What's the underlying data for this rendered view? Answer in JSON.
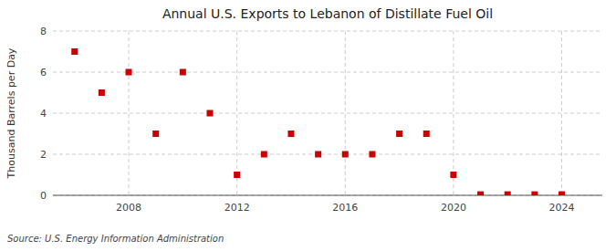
{
  "chart_data": {
    "type": "scatter",
    "title": "Annual U.S. Exports to Lebanon of Distillate Fuel Oil",
    "ylabel": "Thousand Barrels per Day",
    "annotations": [
      "Source: U.S. Energy Information Administration"
    ],
    "x": [
      2006,
      2007,
      2008,
      2009,
      2010,
      2011,
      2012,
      2013,
      2014,
      2015,
      2016,
      2017,
      2018,
      2019,
      2020,
      2021,
      2022,
      2023,
      2024
    ],
    "values": [
      7.0,
      5.0,
      6.0,
      3.0,
      6.0,
      4.0,
      1.0,
      2.0,
      3.0,
      2.0,
      2.0,
      2.0,
      3.0,
      3.0,
      1.0,
      0.04,
      0.04,
      0.04,
      0.04
    ],
    "color": "#cc0000",
    "marker": "square",
    "xlim": [
      2005.2,
      2025.5
    ],
    "xticks": [
      2008,
      2012,
      2016,
      2020,
      2024
    ],
    "ylim": [
      0,
      8
    ],
    "yticks": [
      0,
      2,
      4,
      6,
      8
    ],
    "grid": true
  }
}
